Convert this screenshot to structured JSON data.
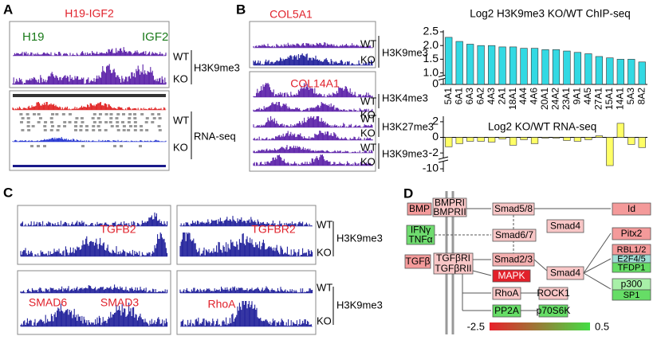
{
  "panels": {
    "A": {
      "letter": "A",
      "title": "H19-IGF2",
      "gene_left": "H19",
      "gene_right": "IGF2",
      "chip_wt": "WT",
      "chip_ko": "KO",
      "chip_mark": "H3K9me3",
      "rna_wt": "WT",
      "rna_ko": "KO",
      "rna_mark": "RNA-seq"
    },
    "B": {
      "letter": "B",
      "gene_top": "COL5A1",
      "gene_bottom": "COL14A1",
      "top_wt": "WT",
      "top_ko": "KO",
      "top_mark": "H3K9me3",
      "k4_wt": "WT",
      "k4_ko": "KO",
      "k4_mark": "H3K4me3",
      "k27_wt": "WT",
      "k27_ko": "KO",
      "k27_mark": "H3K27me3",
      "k9_wt": "WT",
      "k9_ko": "KO",
      "k9_mark": "H3K9me3"
    },
    "C": {
      "letter": "C",
      "gene_1": "TGFB2",
      "gene_2": "TGFBR2",
      "gene_3": "SMAD6",
      "gene_4": "SMAD3",
      "gene_5": "RhoA",
      "top_wt": "WT",
      "top_ko": "KO",
      "top_mark": "H3K9me3",
      "bottom_wt": "WT",
      "bottom_ko": "KO",
      "bottom_mark": "H3K9me3"
    },
    "D": {
      "letter": "D",
      "nodes": [
        {
          "lines": [
            "BMP"
          ],
          "color": "#f49a9a"
        },
        {
          "lines": [
            "BMPRI",
            "BMPRII"
          ],
          "color": "#f8c6c6"
        },
        {
          "lines": [
            "IFNγ",
            "TNFα"
          ],
          "color": "#6fdc6f"
        },
        {
          "lines": [
            "TGFβ"
          ],
          "color": "#f49a9a"
        },
        {
          "lines": [
            "TGFβRI",
            "TGFβRII"
          ],
          "color": "#f8c6c6"
        },
        {
          "lines": [
            "Smad5/8"
          ],
          "color": "#f8c6c6"
        },
        {
          "lines": [
            "Smad6/7"
          ],
          "color": "#f8c6c6"
        },
        {
          "lines": [
            "Smad2/3"
          ],
          "color": "#f4b0b0"
        },
        {
          "lines": [
            "MAPK"
          ],
          "color": "#e2202a",
          "text_color": "#ffffff"
        },
        {
          "lines": [
            "RhoA"
          ],
          "color": "#f8c6c6"
        },
        {
          "lines": [
            "ROCK1"
          ],
          "color": "#f8c6c6"
        },
        {
          "lines": [
            "PP2A"
          ],
          "color": "#66dd66"
        },
        {
          "lines": [
            "p70S6K"
          ],
          "color": "#66dd66"
        },
        {
          "lines": [
            "Smad4"
          ],
          "color": "#f8c6c6"
        },
        {
          "lines": [
            "Smad4"
          ],
          "color": "#f8c6c6"
        },
        {
          "lines": [
            "Id"
          ],
          "color": "#f49a9a"
        },
        {
          "lines": [
            "Pitx2"
          ],
          "color": "#f49a9a"
        },
        {
          "lines": [
            "RBL1/2"
          ],
          "color": "#f49a9a"
        },
        {
          "lines": [
            "E2F4/5"
          ],
          "color": "#9edfd4"
        },
        {
          "lines": [
            "TFDP1"
          ],
          "color": "#66dd66"
        },
        {
          "lines": [
            "p300"
          ],
          "color": "#a8f0a8"
        },
        {
          "lines": [
            "SP1"
          ],
          "color": "#66dd66"
        }
      ],
      "colorbar": {
        "min": -2.5,
        "max": 0.5,
        "colors": [
          "#e8202a",
          "#44dd44"
        ]
      }
    }
  },
  "chart_data": [
    {
      "type": "bar",
      "title": "Log2 H3K9me3 KO/WT ChIP-seq",
      "color": "#33d9e3",
      "categories": [
        "5A1",
        "6A1",
        "6A3",
        "6A2",
        "4A3",
        "2A1",
        "18A1",
        "4A4",
        "4A6",
        "20A1",
        "24A2",
        "23A1",
        "9A1",
        "4A5",
        "27A1",
        "15A1",
        "14A1",
        "5A3",
        "8A2"
      ],
      "values": [
        2.3,
        2.15,
        2.05,
        2.0,
        2.0,
        1.95,
        1.95,
        1.9,
        1.9,
        1.85,
        1.85,
        1.8,
        1.75,
        1.7,
        1.6,
        1.55,
        1.5,
        1.5,
        1.4
      ],
      "ylim": [
        0,
        2.5
      ],
      "y_break": [
        0.2,
        0.9
      ],
      "yticks": [
        0,
        {
          "value": 1,
          "label": "1.0"
        },
        1.5,
        {
          "value": 2,
          "label": "2.0"
        },
        2.5
      ]
    },
    {
      "type": "bar",
      "title": "Log2 KO/WT RNA-seq",
      "color": "#ffff66",
      "values": [
        -1.2,
        -0.8,
        -0.5,
        -0.5,
        -0.6,
        -0.2,
        -1.0,
        -0.3,
        -0.8,
        -0.1,
        -0.1,
        -0.4,
        -0.5,
        -0.3,
        0.2,
        -9.5,
        1.8,
        -0.9,
        -1.3
      ],
      "ylim": [
        -10.5,
        2.5
      ],
      "y_break": [
        -9,
        -2.6
      ],
      "yticks": [
        -10,
        -2,
        0,
        2
      ]
    }
  ]
}
